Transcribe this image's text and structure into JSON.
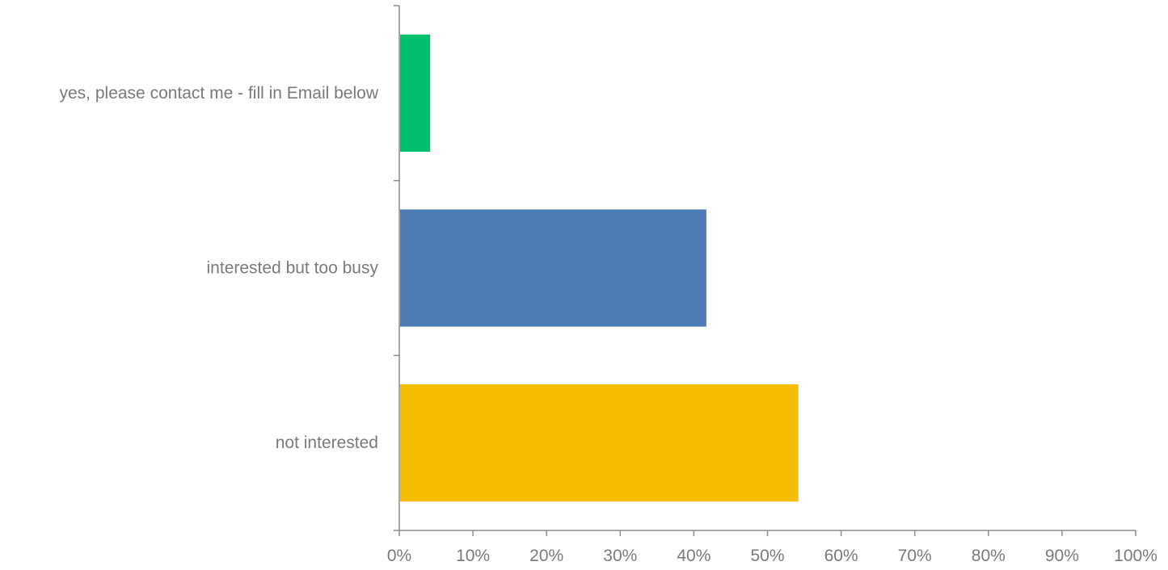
{
  "chart_data": {
    "type": "bar",
    "orientation": "horizontal",
    "categories": [
      "yes, please contact me - fill in Email below",
      "interested but too busy",
      "not interested"
    ],
    "values": [
      4.2,
      41.7,
      54.2
    ],
    "colors": [
      "#00BF6F",
      "#507CB6",
      "#F6BE00"
    ],
    "xlim": [
      0,
      100
    ],
    "x_ticks": [
      "0%",
      "10%",
      "20%",
      "30%",
      "40%",
      "50%",
      "60%",
      "70%",
      "80%",
      "90%",
      "100%"
    ],
    "grid": false,
    "legend": "none",
    "title": "",
    "xlabel": "",
    "ylabel": ""
  }
}
